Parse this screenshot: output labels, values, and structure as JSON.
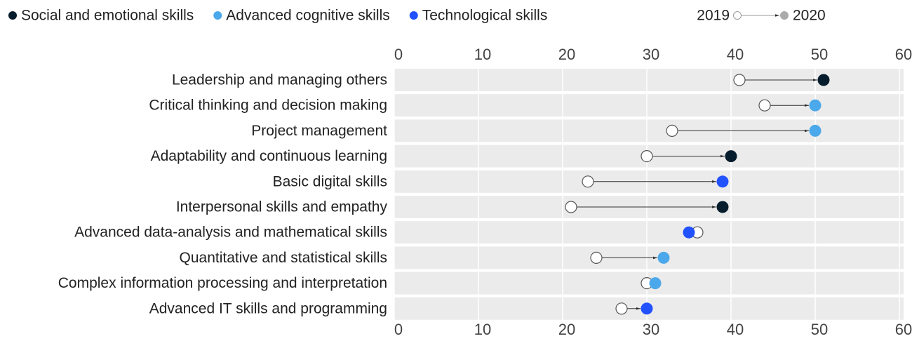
{
  "chart_data": {
    "type": "dumbbell",
    "legend_groups": [
      {
        "name": "Social and emotional skills",
        "color": "#051c2c"
      },
      {
        "name": "Advanced cognitive skills",
        "color": "#4ba8ea"
      },
      {
        "name": "Technological skills",
        "color": "#2251ff"
      }
    ],
    "categories": [
      "Leadership and managing others",
      "Critical thinking and decision making",
      "Project management",
      "Adaptability and continuous learning",
      "Basic digital skills",
      "Interpersonal skills and empathy",
      "Advanced data-analysis and mathematical skills",
      "Quantitative and statistical skills",
      "Complex information processing and interpretation",
      "Advanced IT skills and programming"
    ],
    "series": [
      {
        "name": "2019",
        "color": "#ffffff",
        "values": [
          41,
          44,
          33,
          30,
          23,
          21,
          36,
          24,
          30,
          27
        ]
      },
      {
        "name": "2020",
        "color": "#aaaaaa",
        "values": [
          51,
          50,
          50,
          40,
          39,
          39,
          35,
          32,
          31,
          30
        ],
        "point_colors": [
          "#051c2c",
          "#4ba8ea",
          "#4ba8ea",
          "#051c2c",
          "#2251ff",
          "#051c2c",
          "#2251ff",
          "#4ba8ea",
          "#4ba8ea",
          "#2251ff"
        ]
      }
    ],
    "xlim": [
      0,
      60
    ],
    "xticks": [
      0,
      10,
      20,
      30,
      40,
      50,
      60
    ],
    "grid": true
  }
}
